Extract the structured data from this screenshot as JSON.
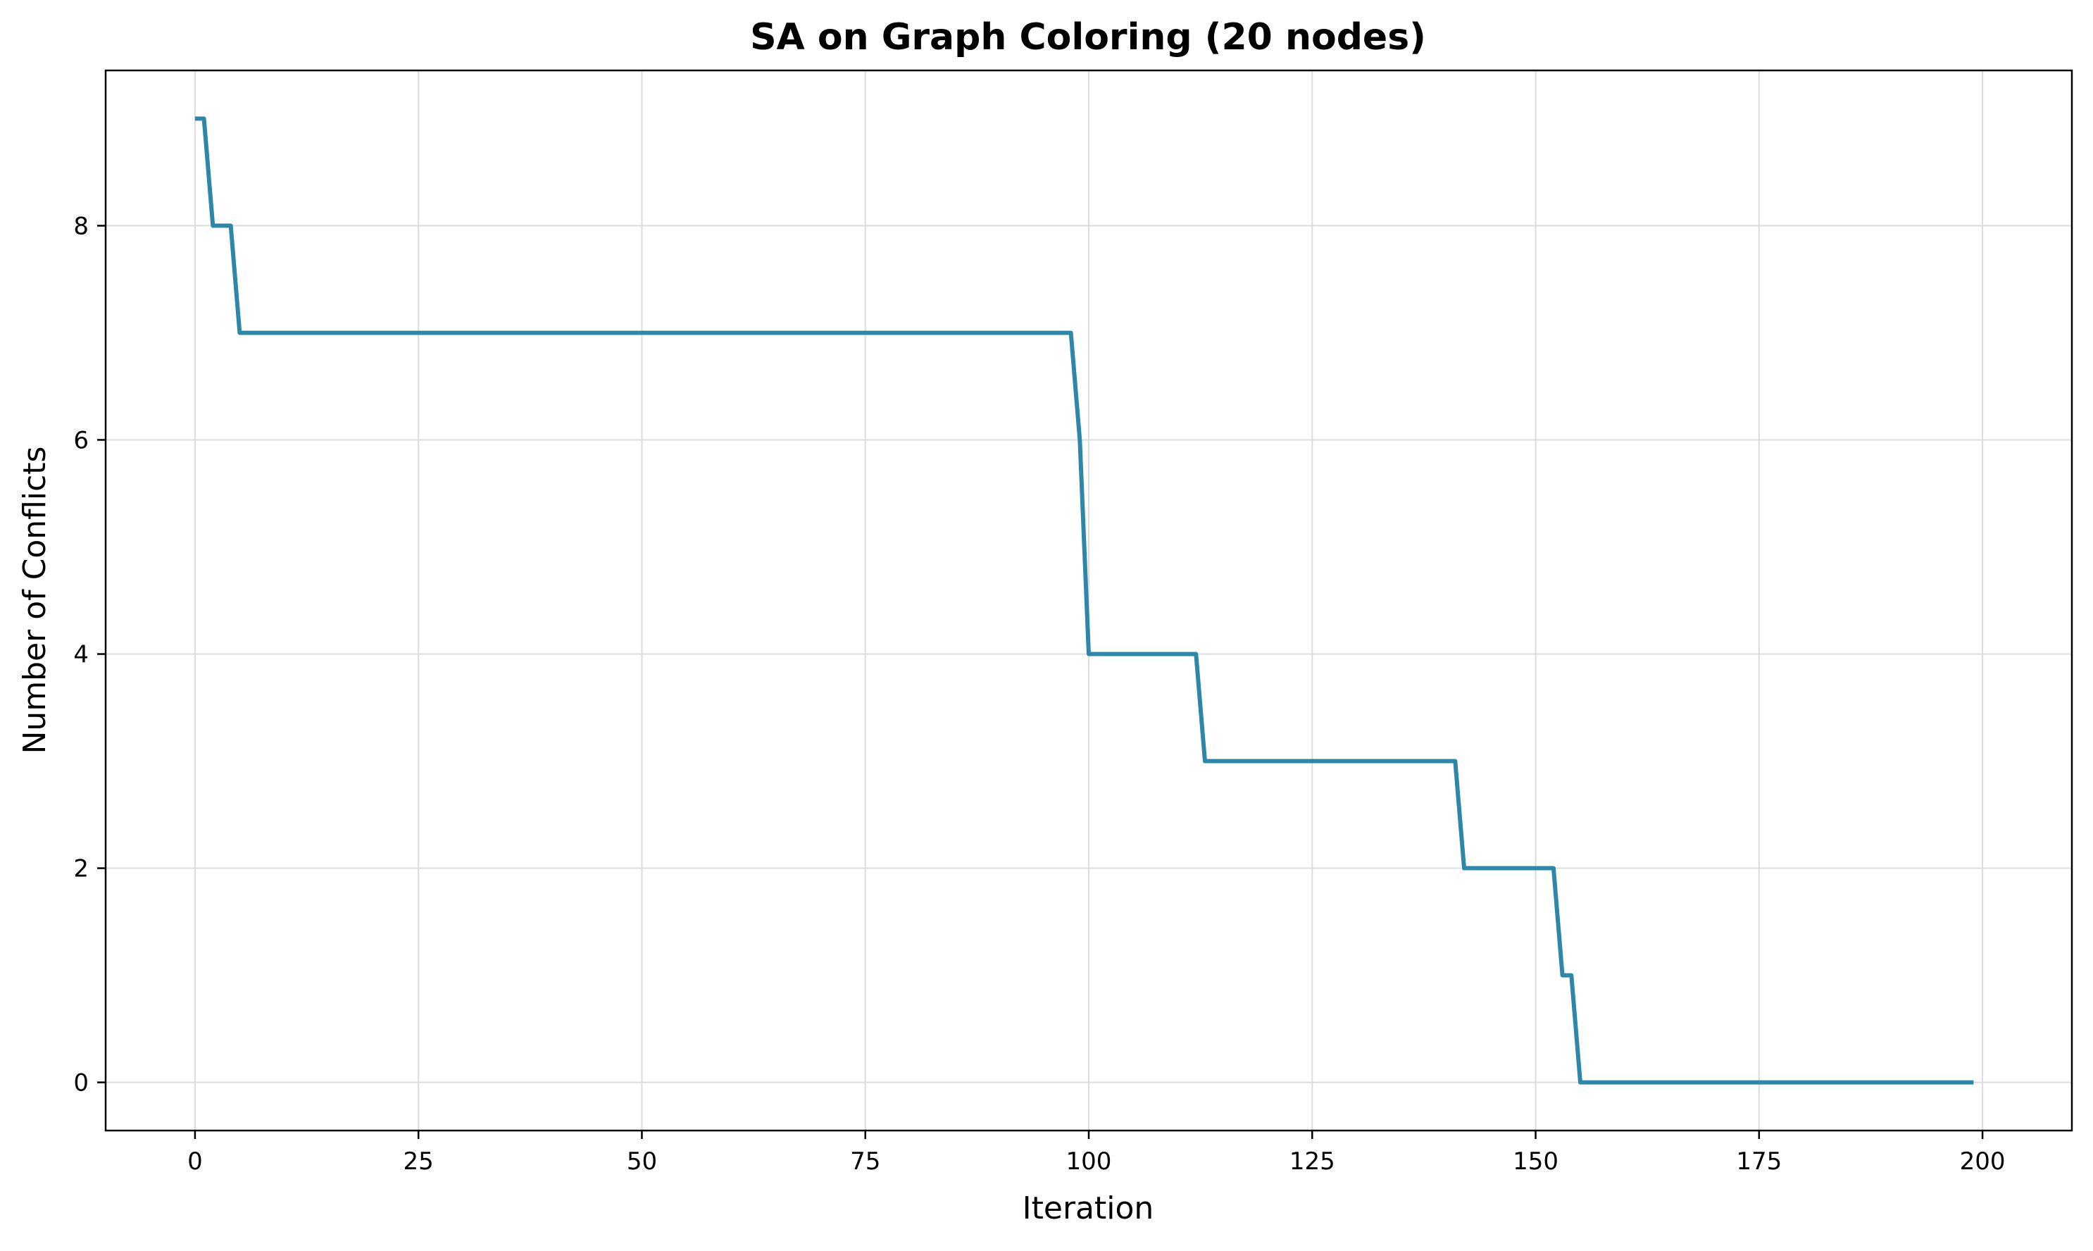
{
  "chart_data": {
    "type": "line",
    "title": "SA on Graph Coloring (20 nodes)",
    "xlabel": "Iteration",
    "ylabel": "Number of Conflicts",
    "xlim": [
      -10,
      210
    ],
    "ylim": [
      -0.45,
      9.45
    ],
    "xticks": [
      0,
      25,
      50,
      75,
      100,
      125,
      150,
      175,
      200
    ],
    "yticks": [
      0,
      2,
      4,
      6,
      8
    ],
    "grid": true,
    "legend": "none",
    "series": [
      {
        "color": "#2e86a8",
        "points": [
          [
            0,
            9
          ],
          [
            1,
            9
          ],
          [
            2,
            8
          ],
          [
            3,
            8
          ],
          [
            4,
            8
          ],
          [
            5,
            7
          ],
          [
            98,
            7
          ],
          [
            99,
            6
          ],
          [
            100,
            4
          ],
          [
            112,
            4
          ],
          [
            113,
            3
          ],
          [
            141,
            3
          ],
          [
            142,
            2
          ],
          [
            152,
            2
          ],
          [
            153,
            1
          ],
          [
            154,
            1
          ],
          [
            155,
            0
          ],
          [
            199,
            0
          ]
        ]
      }
    ]
  }
}
